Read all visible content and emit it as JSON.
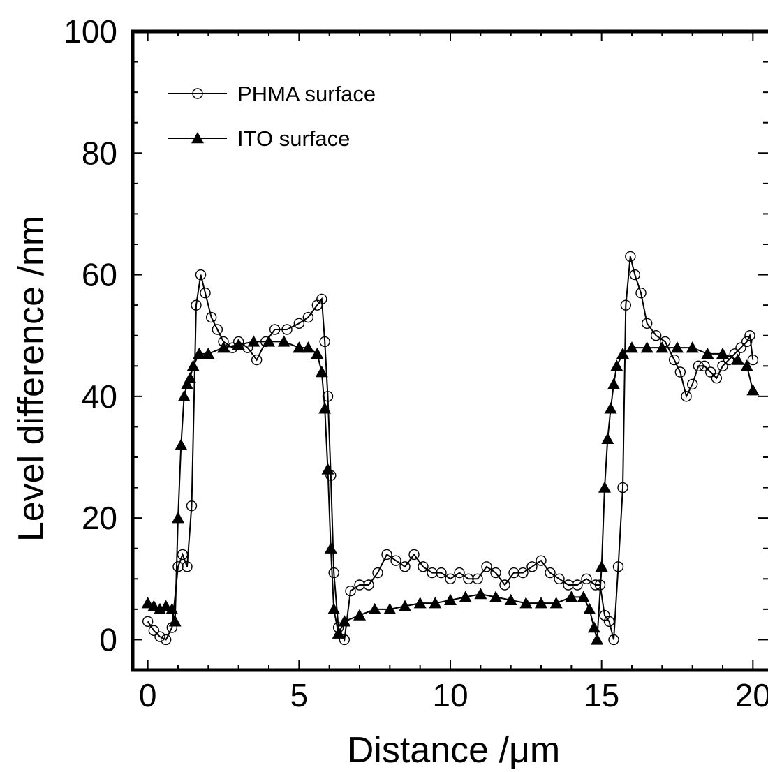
{
  "chart_data": {
    "type": "line",
    "xlabel": "Distance /μm",
    "ylabel": "Level difference /nm",
    "xlim": [
      -0.5,
      20.5
    ],
    "ylim": [
      -5,
      100
    ],
    "xticks": [
      0,
      5,
      10,
      15,
      20
    ],
    "xtick_labels": [
      "0",
      "5",
      "10",
      "15",
      "20"
    ],
    "yticks": [
      0,
      20,
      40,
      60,
      80,
      100
    ],
    "ytick_labels": [
      "0",
      "20",
      "40",
      "60",
      "80",
      "100"
    ],
    "grid": false,
    "legend_position": "top-left",
    "series": [
      {
        "name": "PHMA surface",
        "marker": "open-circle",
        "color": "#000000",
        "x": [
          0,
          0.2,
          0.4,
          0.6,
          0.8,
          1.0,
          1.15,
          1.3,
          1.45,
          1.6,
          1.75,
          1.9,
          2.1,
          2.3,
          2.5,
          2.8,
          3.0,
          3.3,
          3.6,
          3.9,
          4.2,
          4.6,
          5.0,
          5.3,
          5.6,
          5.75,
          5.85,
          5.95,
          6.05,
          6.15,
          6.3,
          6.5,
          6.7,
          7.0,
          7.3,
          7.6,
          7.9,
          8.2,
          8.5,
          8.8,
          9.1,
          9.4,
          9.7,
          10.0,
          10.3,
          10.6,
          10.9,
          11.2,
          11.5,
          11.8,
          12.1,
          12.4,
          12.7,
          13.0,
          13.3,
          13.6,
          13.9,
          14.2,
          14.5,
          14.8,
          14.95,
          15.1,
          15.25,
          15.4,
          15.55,
          15.7,
          15.8,
          15.95,
          16.1,
          16.3,
          16.5,
          16.8,
          17.1,
          17.4,
          17.6,
          17.8,
          18.0,
          18.2,
          18.4,
          18.6,
          18.8,
          19.0,
          19.2,
          19.4,
          19.6,
          19.8,
          19.9,
          20.0
        ],
        "y": [
          3,
          1.5,
          0.5,
          0,
          2,
          12,
          14,
          12,
          22,
          55,
          60,
          57,
          53,
          51,
          49,
          48,
          49,
          48,
          46,
          49,
          51,
          51,
          52,
          53,
          55,
          56,
          49,
          40,
          27,
          11,
          2,
          0,
          8,
          9,
          9,
          11,
          14,
          13,
          12,
          14,
          12,
          11,
          11,
          10,
          11,
          10,
          10,
          12,
          11,
          9,
          11,
          11,
          12,
          13,
          11,
          10,
          9,
          9,
          10,
          9,
          9,
          4,
          3,
          0,
          12,
          25,
          55,
          63,
          60,
          57,
          52,
          50,
          49,
          46,
          44,
          40,
          42,
          45,
          45,
          44,
          43,
          45,
          46,
          47,
          48,
          49,
          50,
          46
        ]
      },
      {
        "name": "ITO surface",
        "marker": "filled-triangle",
        "color": "#000000",
        "x": [
          0,
          0.2,
          0.4,
          0.6,
          0.8,
          0.9,
          1.0,
          1.1,
          1.2,
          1.3,
          1.4,
          1.5,
          1.7,
          2.0,
          2.5,
          3.0,
          3.5,
          4.0,
          4.5,
          5.0,
          5.3,
          5.6,
          5.75,
          5.85,
          5.95,
          6.05,
          6.15,
          6.3,
          6.5,
          7.0,
          7.5,
          8.0,
          8.5,
          9.0,
          9.5,
          10.0,
          10.5,
          11.0,
          11.5,
          12.0,
          12.5,
          13.0,
          13.5,
          14.0,
          14.4,
          14.6,
          14.75,
          14.85,
          15.0,
          15.1,
          15.2,
          15.3,
          15.4,
          15.5,
          15.7,
          16.0,
          16.5,
          17.0,
          17.5,
          18.0,
          18.5,
          19.0,
          19.5,
          19.8,
          20.0
        ],
        "y": [
          6,
          5.5,
          5,
          5.5,
          5,
          3,
          20,
          32,
          40,
          42,
          43,
          45,
          47,
          47,
          48,
          48.5,
          49,
          49,
          49,
          48,
          48,
          47,
          44,
          38,
          28,
          15,
          5,
          1,
          3,
          4,
          5,
          5,
          5.5,
          6,
          6,
          6.5,
          7,
          7.5,
          7,
          6.5,
          6,
          6,
          6,
          7,
          7,
          5,
          2,
          0,
          12,
          25,
          33,
          38,
          42,
          45,
          47,
          48,
          48,
          48,
          48,
          48,
          47,
          47,
          46,
          45,
          41
        ]
      }
    ]
  }
}
